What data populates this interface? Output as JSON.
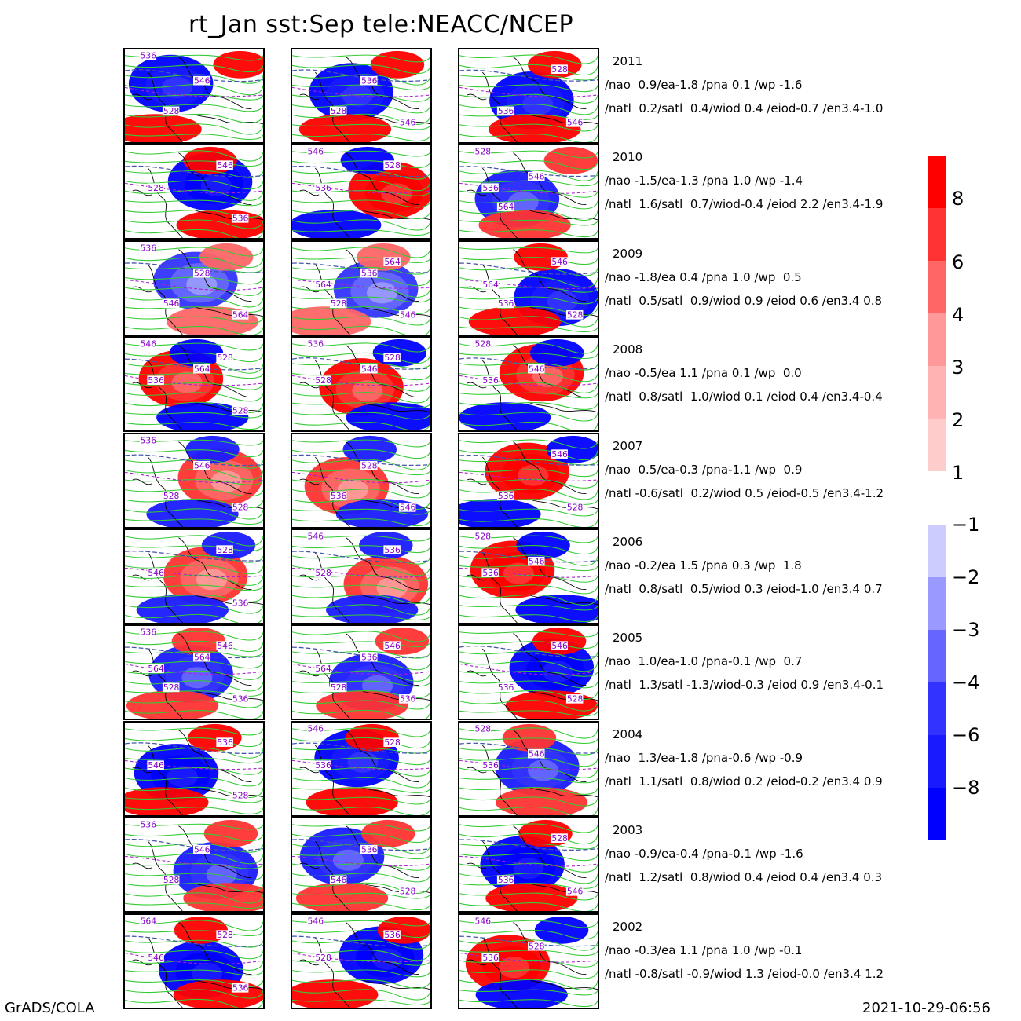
{
  "title": "rt_Jan  sst:Sep  tele:NEACC/NCEP",
  "footer_left": "GrADS/COLA",
  "footer_right": "2021-10-29-06:56",
  "colors": {
    "pos": [
      "#ffcccc",
      "#ffb3b3",
      "#ff9999",
      "#ff6666",
      "#ff3333",
      "#ff0000"
    ],
    "neg": [
      "#ccccff",
      "#9999ff",
      "#6666ff",
      "#3333ff",
      "#1a1aff",
      "#0000ff"
    ],
    "contour_green": "#33cc33",
    "contour_blue": "#4455aa",
    "contour_dashed": "#aa22cc",
    "label_text": "#8800cc"
  },
  "colorbar": {
    "positive_labels": [
      "8",
      "6",
      "4",
      "3",
      "2",
      "1"
    ],
    "negative_labels": [
      "-1",
      "-2",
      "-3",
      "-4",
      "-6",
      "-8"
    ]
  },
  "rows": [
    {
      "year": "2011",
      "line1": "/nao  0.9/ea-1.8 /pna 0.1 /wp -1.6",
      "line2": "/natl  0.2/satl  0.4/wiod 0.4 /eiod-0.7 /en3.4-1.0",
      "labels": [
        [
          "536",
          "546",
          "528"
        ],
        [
          "536",
          "528",
          "546"
        ],
        [
          "536",
          "546",
          "528"
        ]
      ],
      "pattern": [
        -2,
        -2,
        -2
      ]
    },
    {
      "year": "2010",
      "line1": "/nao -1.5/ea-1.3 /pna 1.0 /wp -1.4",
      "line2": "/natl  1.6/satl  0.7/wiod-0.4 /eiod 2.2 /en3.4-1.9",
      "labels": [
        [
          "536",
          "546",
          "528"
        ],
        [
          "528",
          "536",
          "546"
        ],
        [
          "536",
          "528",
          "546",
          "564"
        ]
      ],
      "pattern": [
        -1,
        1,
        -3
      ]
    },
    {
      "year": "2009",
      "line1": "/nao -1.8/ea 0.4 /pna 1.0 /wp  0.5",
      "line2": "/natl  0.5/satl  0.9/wiod 0.9 /eiod 0.6 /en3.4 0.8",
      "labels": [
        [
          "536",
          "528",
          "546",
          "564"
        ],
        [
          "536",
          "528",
          "546",
          "564",
          "564"
        ],
        [
          "536",
          "528",
          "546",
          "564"
        ]
      ],
      "pattern": [
        -4,
        -4,
        -2
      ]
    },
    {
      "year": "2008",
      "line1": "/nao -0.5/ea 1.1 /pna 0.1 /wp  0.0",
      "line2": "/natl  0.8/satl  1.0/wiod 0.1 /eiod 0.4 /en3.4-0.4",
      "labels": [
        [
          "528",
          "528",
          "536",
          "546",
          "564"
        ],
        [
          "528",
          "528",
          "536",
          "546"
        ],
        [
          "536",
          "528",
          "546"
        ]
      ],
      "pattern": [
        2,
        2,
        2
      ]
    },
    {
      "year": "2007",
      "line1": "/nao  0.5/ea-0.3 /pna-1.1 /wp  0.9",
      "line2": "/natl -0.6/satl  0.2/wiod 0.5 /eiod-0.5 /en3.4-1.2",
      "labels": [
        [
          "536",
          "546",
          "528",
          "528"
        ],
        [
          "528",
          "536",
          "546"
        ],
        [
          "536",
          "528",
          "546"
        ]
      ],
      "pattern": [
        3,
        3,
        1
      ]
    },
    {
      "year": "2006",
      "line1": "/nao -0.2/ea 1.5 /pna 0.3 /wp  1.8",
      "line2": "/natl  0.8/satl  0.5/wiod 0.3 /eiod-1.0 /en3.4 0.7",
      "labels": [
        [
          "536",
          "528",
          "546"
        ],
        [
          "536",
          "528",
          "546"
        ],
        [
          "536",
          "528",
          "546"
        ]
      ],
      "pattern": [
        3,
        3,
        1
      ]
    },
    {
      "year": "2005",
      "line1": "/nao  1.0/ea-1.0 /pna-0.1 /wp  0.7",
      "line2": "/natl  1.3/satl -1.3/wiod-0.3 /eiod 0.9 /en3.4-0.1",
      "labels": [
        [
          "536",
          "564",
          "528",
          "536",
          "546",
          "564"
        ],
        [
          "536",
          "528",
          "536",
          "546",
          "564"
        ],
        [
          "536",
          "528",
          "546"
        ]
      ],
      "pattern": [
        -3,
        -3,
        -1
      ]
    },
    {
      "year": "2004",
      "line1": "/nao  1.3/ea-1.8 /pna-0.6 /wp -0.9",
      "line2": "/natl  1.1/satl  0.8/wiod 0.2 /eiod-0.2 /en3.4 0.9",
      "labels": [
        [
          "528",
          "536",
          "546"
        ],
        [
          "528",
          "536",
          "546"
        ],
        [
          "536",
          "528",
          "546"
        ]
      ],
      "pattern": [
        -1,
        -2,
        -3
      ]
    },
    {
      "year": "2003",
      "line1": "/nao -0.9/ea-0.4 /pna-0.1 /wp -1.6",
      "line2": "/natl  1.2/satl  0.8/wiod 0.4 /eiod 0.4 /en3.4 0.3",
      "labels": [
        [
          "536",
          "546",
          "528"
        ],
        [
          "536",
          "546",
          "528"
        ],
        [
          "536",
          "546",
          "528"
        ]
      ],
      "pattern": [
        -3,
        -3,
        -1
      ]
    },
    {
      "year": "2002",
      "line1": "/nao -0.3/ea 1.1 /pna 1.0 /wp -0.1",
      "line2": "/natl -0.8/satl -0.9/wiod 1.3 /eiod-0.0 /en3.4 1.2",
      "labels": [
        [
          "536",
          "528",
          "546",
          "564"
        ],
        [
          "536",
          "528",
          "546"
        ],
        [
          "536",
          "546",
          "528"
        ]
      ],
      "pattern": [
        -1,
        -1,
        1
      ]
    }
  ]
}
